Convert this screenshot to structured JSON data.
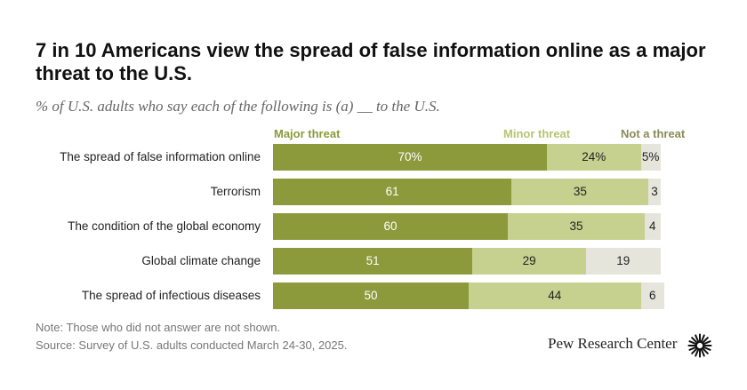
{
  "chart_data": {
    "type": "bar",
    "orientation": "horizontal",
    "stacked": true,
    "title": "7 in 10 Americans view the spread of false information online as a major threat to the U.S.",
    "subtitle": "% of U.S. adults who say each of the following is (a) __ to the U.S.",
    "categories": [
      "The spread of false information online",
      "Terrorism",
      "The condition of the global economy",
      "Global climate change",
      "The spread of infectious diseases"
    ],
    "series": [
      {
        "name": "Major threat",
        "values": [
          70,
          61,
          60,
          51,
          50
        ],
        "labels": [
          "70%",
          "61",
          "60",
          "51",
          "50"
        ],
        "color": "#8c9a3c"
      },
      {
        "name": "Minor threat",
        "values": [
          24,
          35,
          35,
          29,
          44
        ],
        "labels": [
          "24%",
          "35",
          "35",
          "29",
          "44"
        ],
        "color": "#c6d08f"
      },
      {
        "name": "Not a threat",
        "values": [
          5,
          3,
          4,
          19,
          6
        ],
        "labels": [
          "5%",
          "3",
          "4",
          "19",
          "6"
        ],
        "color": "#e6e5dc"
      }
    ],
    "xlim": [
      0,
      100
    ],
    "grid": false,
    "legend": "top"
  },
  "footer": {
    "note": "Note: Those who did not answer are not shown.",
    "source": "Source: Survey of U.S. adults conducted March 24-30, 2025.",
    "brand": "Pew Research Center"
  },
  "icons": {
    "brand_mark": "pew-sunburst-icon"
  }
}
